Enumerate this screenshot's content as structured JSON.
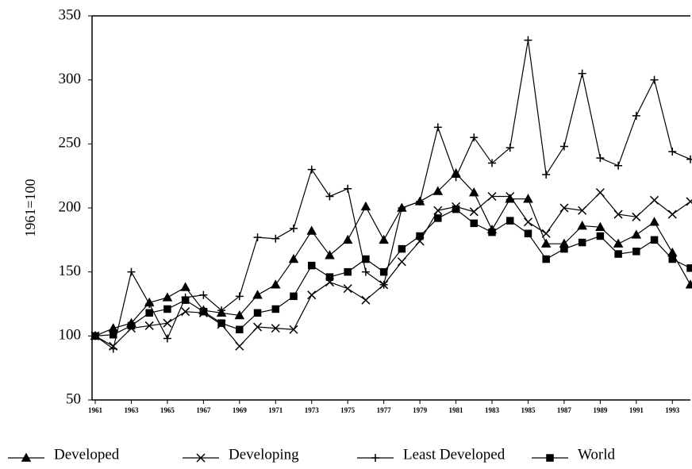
{
  "chart_data": {
    "type": "line",
    "y_label": "1961=100",
    "x": [
      1961,
      1962,
      1963,
      1964,
      1965,
      1966,
      1967,
      1968,
      1969,
      1970,
      1971,
      1972,
      1973,
      1974,
      1975,
      1976,
      1977,
      1978,
      1979,
      1980,
      1981,
      1982,
      1983,
      1984,
      1985,
      1986,
      1987,
      1988,
      1989,
      1990,
      1991,
      1992,
      1993,
      1994
    ],
    "xlim": [
      1961,
      1994
    ],
    "xticks": [
      1961,
      1963,
      1965,
      1967,
      1969,
      1971,
      1973,
      1975,
      1977,
      1979,
      1981,
      1983,
      1985,
      1987,
      1989,
      1991,
      1993
    ],
    "ylim": [
      50,
      350
    ],
    "yticks": [
      50,
      100,
      150,
      200,
      250,
      300,
      350
    ],
    "grid": false,
    "legend": "bottom",
    "series": [
      {
        "name": "Developed",
        "color": "#000000",
        "marker": "triangle",
        "values": [
          100,
          106,
          110,
          126,
          130,
          138,
          120,
          118,
          116,
          132,
          140,
          160,
          182,
          163,
          175,
          201,
          175,
          200,
          205,
          213,
          227,
          212,
          183,
          207,
          207,
          172,
          172,
          186,
          185,
          172,
          179,
          189,
          165,
          140
        ]
      },
      {
        "name": "Developing",
        "color": "#000000",
        "marker": "x",
        "values": [
          100,
          92,
          106,
          108,
          110,
          119,
          118,
          109,
          92,
          107,
          106,
          105,
          132,
          142,
          137,
          128,
          140,
          158,
          174,
          198,
          201,
          197,
          209,
          209,
          189,
          180,
          200,
          198,
          212,
          195,
          193,
          206,
          195,
          205
        ]
      },
      {
        "name": "Least Developed",
        "color": "#000000",
        "marker": "plus",
        "values": [
          100,
          90,
          150,
          125,
          98,
          130,
          132,
          120,
          131,
          177,
          176,
          184,
          230,
          209,
          215,
          150,
          140,
          200,
          205,
          263,
          224,
          255,
          235,
          247,
          331,
          226,
          248,
          305,
          239,
          233,
          272,
          300,
          244,
          238
        ]
      },
      {
        "name": "World",
        "color": "#000000",
        "marker": "square",
        "values": [
          100,
          101,
          108,
          118,
          121,
          128,
          119,
          110,
          105,
          118,
          121,
          131,
          155,
          146,
          150,
          160,
          150,
          168,
          178,
          192,
          199,
          188,
          181,
          190,
          180,
          160,
          168,
          173,
          178,
          164,
          166,
          175,
          160,
          153
        ]
      }
    ]
  }
}
